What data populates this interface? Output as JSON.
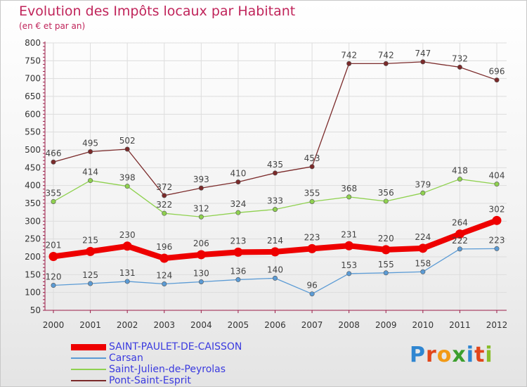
{
  "header": {
    "title": "Evolution des Impôts locaux par Habitant",
    "subtitle": "(en € et par an)"
  },
  "logo": {
    "letters": [
      "P",
      "r",
      "o",
      "x",
      "i",
      "t",
      "i"
    ],
    "colors": [
      "#2f86d1",
      "#e2461b",
      "#f29a16",
      "#3c9f2e",
      "#2f86d1",
      "#e2461b",
      "#89bd2a"
    ]
  },
  "colors": {
    "axis": "#9b1b47",
    "grid": "#dddddd",
    "axis_text": "#333333",
    "value_text": "#444444"
  },
  "chart_data": {
    "type": "line",
    "title": "Evolution des Impôts locaux par Habitant",
    "subtitle": "(en € et par an)",
    "x": [
      "2000",
      "2001",
      "2002",
      "2003",
      "2004",
      "2005",
      "2006",
      "2007",
      "2008",
      "2009",
      "2010",
      "2011",
      "2012"
    ],
    "ylim": [
      50,
      800
    ],
    "yticks": [
      50,
      100,
      150,
      200,
      250,
      300,
      350,
      400,
      450,
      500,
      550,
      600,
      650,
      700,
      750,
      800
    ],
    "grid": true,
    "legend_position": "bottom-left",
    "series": [
      {
        "name": "SAINT-PAULET-DE-CAISSON",
        "color": "#ee0000",
        "width": "thick",
        "values": [
          201,
          215,
          230,
          196,
          206,
          213,
          214,
          223,
          231,
          220,
          224,
          264,
          302
        ]
      },
      {
        "name": "Carsan",
        "color": "#5b9bd5",
        "width": "thin",
        "values": [
          120,
          125,
          131,
          124,
          130,
          136,
          140,
          96,
          153,
          155,
          158,
          222,
          223
        ]
      },
      {
        "name": "Saint-Julien-de-Peyrolas",
        "color": "#8fd14f",
        "width": "thin",
        "values": [
          355,
          414,
          398,
          322,
          312,
          324,
          333,
          355,
          368,
          356,
          379,
          418,
          404
        ]
      },
      {
        "name": "Pont-Saint-Esprit",
        "color": "#7b2a2a",
        "width": "thin",
        "values": [
          466,
          495,
          502,
          372,
          393,
          410,
          435,
          453,
          742,
          742,
          747,
          732,
          696
        ]
      }
    ]
  }
}
